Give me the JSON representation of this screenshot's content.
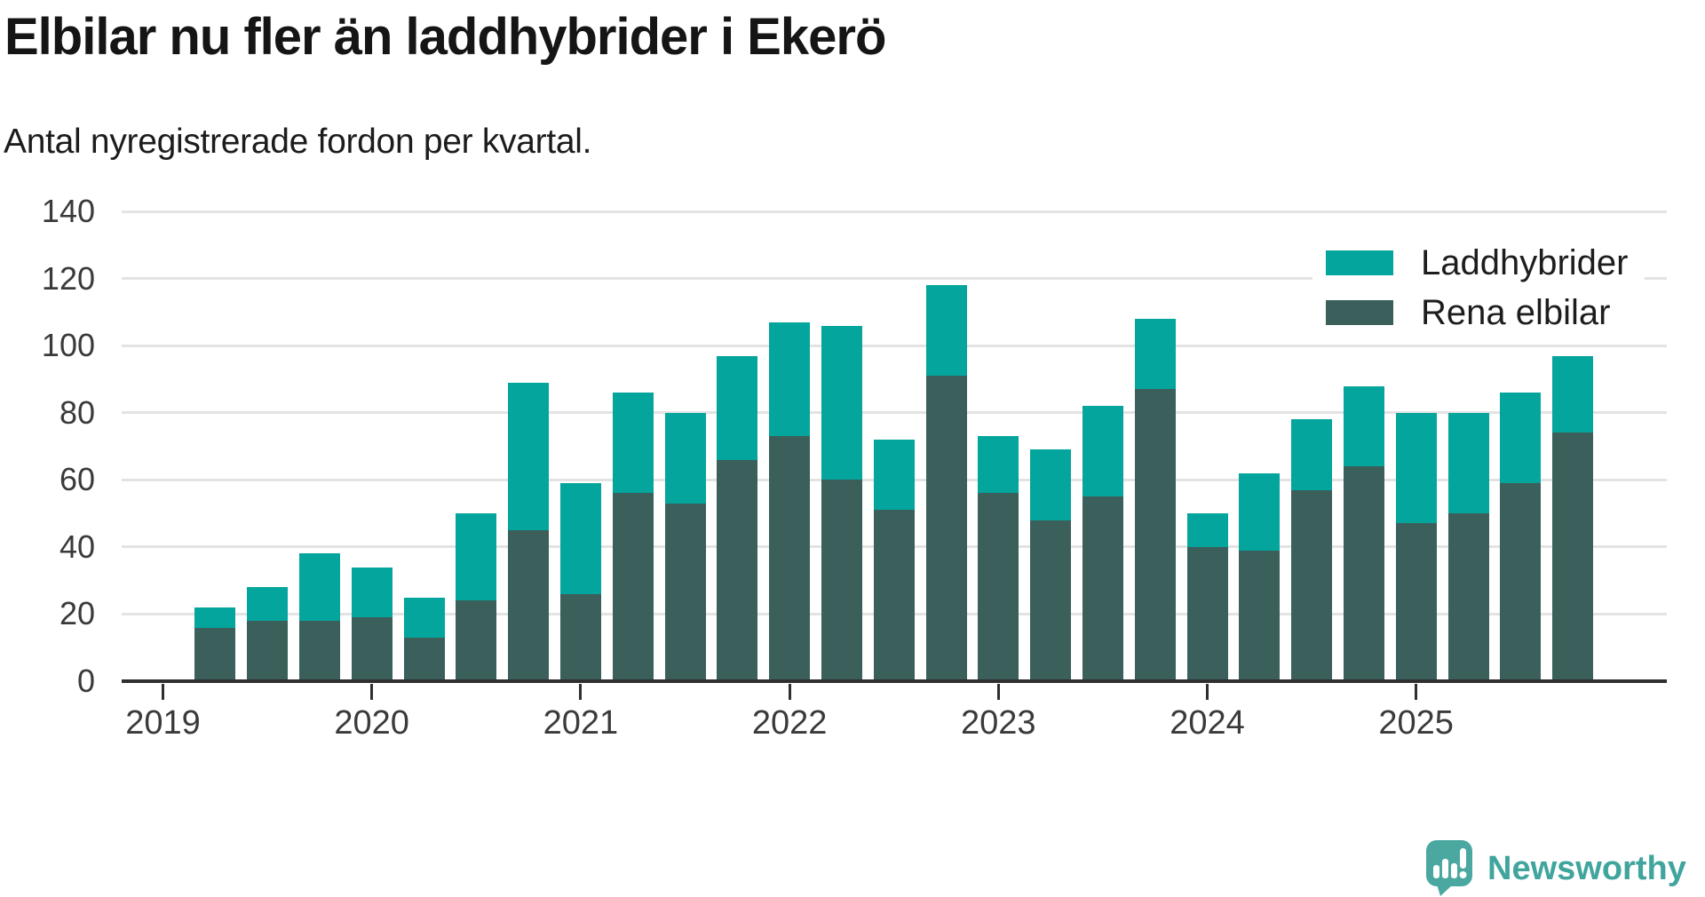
{
  "header": {
    "title": "Elbilar nu fler än laddhybrider i Ekerö",
    "subtitle": "Antal nyregistrerade fordon per kvartal."
  },
  "colors": {
    "laddhybrider": "#04a59c",
    "rena_elbilar": "#3b5f5a",
    "axis": "#2f2f2f",
    "gridline": "#e3e3e3",
    "tick_text": "#3a3a3a",
    "logo_bubble": "#4aa8a1",
    "logo_text": "#3fa59d"
  },
  "legend": {
    "items": [
      {
        "label": "Laddhybrider",
        "color": "#04a59c"
      },
      {
        "label": "Rena elbilar",
        "color": "#3b5f5a"
      }
    ]
  },
  "chart_data": {
    "type": "bar",
    "stacked": true,
    "title": "Elbilar nu fler än laddhybrider i Ekerö",
    "subtitle": "Antal nyregistrerade fordon per kvartal.",
    "categories": [
      "2019 Q2",
      "2019 Q3",
      "2019 Q4",
      "2020 Q1",
      "2020 Q2",
      "2020 Q3",
      "2020 Q4",
      "2021 Q1",
      "2021 Q2",
      "2021 Q3",
      "2021 Q4",
      "2022 Q1",
      "2022 Q2",
      "2022 Q3",
      "2022 Q4",
      "2023 Q1",
      "2023 Q2",
      "2023 Q3",
      "2023 Q4",
      "2024 Q1",
      "2024 Q2",
      "2024 Q3",
      "2024 Q4",
      "2025 Q1",
      "2025 Q2",
      "2025 Q3",
      "2025 Q4"
    ],
    "series": [
      {
        "name": "Laddhybrider",
        "color": "#04a59c",
        "stack_position": "top",
        "values": [
          6,
          10,
          20,
          15,
          12,
          26,
          44,
          33,
          30,
          27,
          31,
          34,
          46,
          21,
          27,
          17,
          21,
          27,
          21,
          10,
          23,
          21,
          24,
          33,
          30,
          27,
          23
        ]
      },
      {
        "name": "Rena elbilar",
        "color": "#3b5f5a",
        "stack_position": "bottom",
        "values": [
          16,
          18,
          18,
          19,
          13,
          24,
          45,
          26,
          56,
          53,
          66,
          73,
          60,
          51,
          91,
          56,
          48,
          55,
          87,
          40,
          39,
          57,
          64,
          47,
          50,
          59,
          74
        ]
      }
    ],
    "totals": [
      22,
      28,
      38,
      34,
      25,
      50,
      89,
      59,
      86,
      80,
      97,
      107,
      106,
      72,
      118,
      73,
      69,
      82,
      108,
      50,
      62,
      78,
      88,
      80,
      80,
      86,
      97
    ],
    "ylim": [
      0,
      140
    ],
    "y_ticks": [
      0,
      20,
      40,
      60,
      80,
      100,
      120,
      140
    ],
    "x_year_ticks": [
      "2019",
      "2020",
      "2021",
      "2022",
      "2023",
      "2024",
      "2025"
    ],
    "grid": "horizontal",
    "legend_position": "top-right"
  },
  "footer": {
    "brand": "Newsworthy"
  }
}
